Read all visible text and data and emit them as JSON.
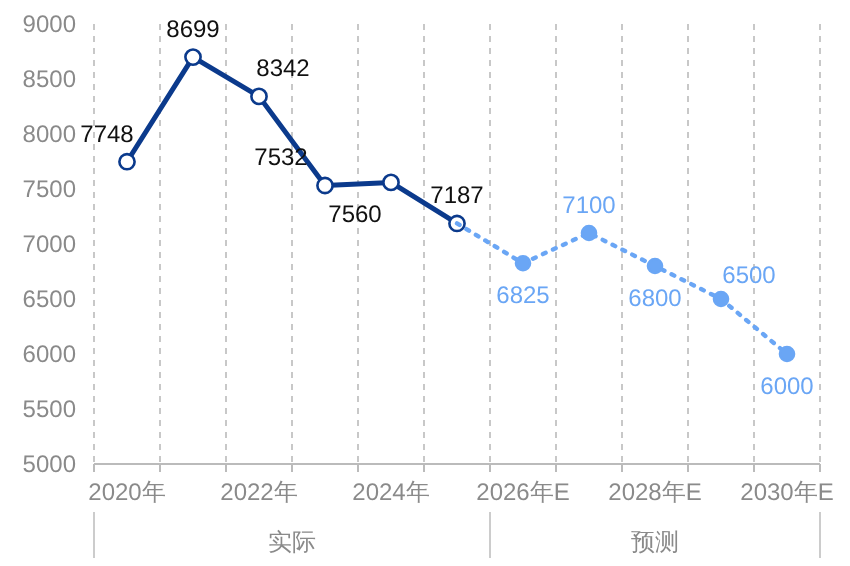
{
  "chart_data": {
    "type": "line",
    "categories": [
      "2020年",
      null,
      "2022年",
      null,
      "2024年",
      null,
      "2026年E",
      null,
      "2028年E",
      null,
      "2030年E"
    ],
    "series": [
      {
        "color": "#0b3a8c",
        "line_style": "solid",
        "values": [
          7748,
          8699,
          8342,
          7532,
          7560,
          7187,
          null,
          null,
          null,
          null,
          null
        ],
        "value_labels": [
          "7748",
          "8699",
          "8342",
          "7532",
          "7560",
          "7187",
          null,
          null,
          null,
          null,
          null
        ]
      },
      {
        "color": "#6aa6f5",
        "line_style": "dotted",
        "values": [
          null,
          null,
          null,
          null,
          null,
          7187,
          6825,
          7100,
          6800,
          6500,
          6000
        ],
        "value_labels": [
          null,
          null,
          null,
          null,
          null,
          null,
          "6825",
          "7100",
          "6800",
          "6500",
          "6000"
        ]
      }
    ],
    "ylim": [
      5000,
      9000
    ],
    "yticks": [
      5000,
      5500,
      6000,
      6500,
      7000,
      7500,
      8000,
      8500,
      9000
    ],
    "grid": "x",
    "marker": "circle",
    "annotations": [
      "实际",
      "预测"
    ]
  }
}
